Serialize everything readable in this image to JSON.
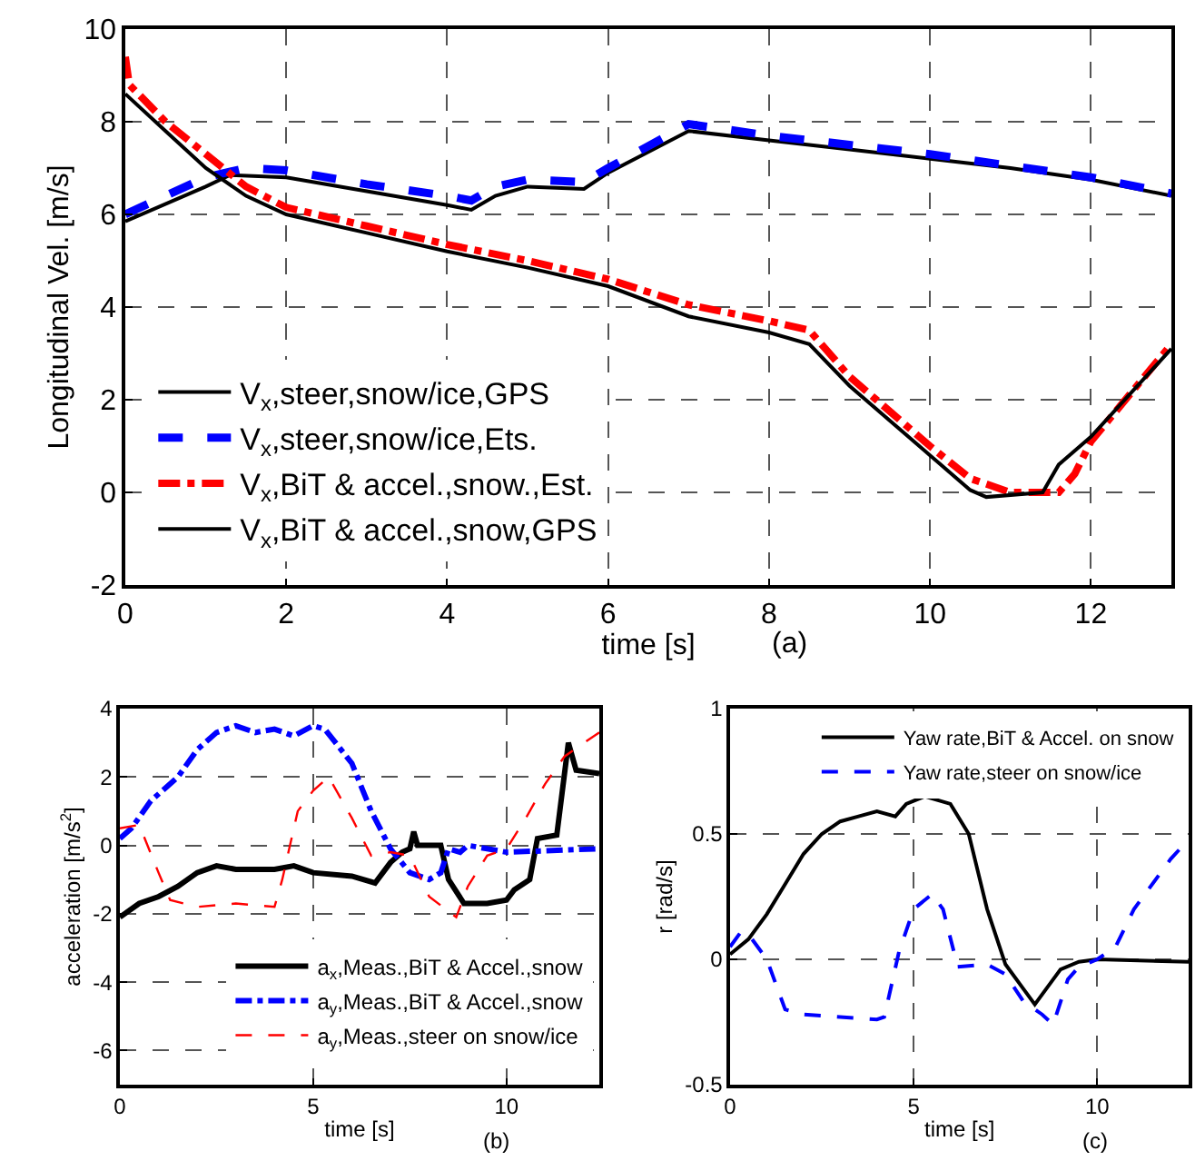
{
  "chart_data": [
    {
      "type": "line",
      "xlabel": "time [s]",
      "ylabel": "Longitudinal Vel. [m/s]",
      "annotations": [
        "(a)"
      ],
      "xlim": [
        0,
        13
      ],
      "xticks": [
        0,
        2,
        4,
        6,
        8,
        10,
        12
      ],
      "ylim": [
        -2,
        10
      ],
      "yticks": [
        -2,
        0,
        2,
        4,
        6,
        8,
        10
      ],
      "grid": true,
      "legend": "bottom left",
      "marker": "none",
      "series": [
        {
          "name": "V$_{x}$,steer,snow/ice,GPS",
          "color": "#000000",
          "line_style": "solid",
          "x": [
            0,
            1,
            1.3,
            2,
            3,
            4,
            4.3,
            4.6,
            5,
            5.7,
            6,
            7,
            8,
            9,
            10,
            11,
            12,
            13
          ],
          "values": [
            5.85,
            6.6,
            6.85,
            6.8,
            6.5,
            6.2,
            6.1,
            6.4,
            6.6,
            6.55,
            6.9,
            7.8,
            7.6,
            7.4,
            7.2,
            7.0,
            6.75,
            6.4
          ]
        },
        {
          "name": "V$_{x}$,steer,snow/ice,Ets.",
          "color": "#0000ff",
          "line_style": "dashed",
          "x": [
            0,
            0.5,
            1,
            1.5,
            2,
            3,
            4,
            4.3,
            4.6,
            5,
            5.7,
            6,
            7,
            8,
            9,
            10,
            11,
            12,
            13
          ],
          "values": [
            6.0,
            6.4,
            6.8,
            7.0,
            6.95,
            6.65,
            6.4,
            6.3,
            6.6,
            6.75,
            6.7,
            7.0,
            7.95,
            7.7,
            7.5,
            7.3,
            7.05,
            6.8,
            6.45
          ]
        },
        {
          "name": "V$_{x}$,BiT & accel.,snow.,Est.",
          "color": "#ff0000",
          "line_style": "dashdot",
          "x": [
            0,
            0.05,
            0.5,
            1,
            1.5,
            2,
            3,
            4,
            5,
            6,
            7,
            8,
            8.5,
            9,
            10,
            10.5,
            11,
            11.6,
            11.8,
            12,
            13
          ],
          "values": [
            9.4,
            8.8,
            8.0,
            7.3,
            6.6,
            6.15,
            5.75,
            5.35,
            5.0,
            4.6,
            4.05,
            3.7,
            3.5,
            2.5,
            1.0,
            0.3,
            0,
            0,
            0.4,
            1.1,
            3.2
          ]
        },
        {
          "name": "V$_{x}$,BiT & accel.,snow,GPS",
          "color": "#000000",
          "line_style": "solid",
          "x": [
            0,
            0.5,
            1,
            1.5,
            2,
            3,
            4,
            5,
            6,
            7,
            8,
            8.5,
            9,
            10,
            10.5,
            10.7,
            11.4,
            11.6,
            12,
            13
          ],
          "values": [
            8.6,
            7.8,
            7.0,
            6.4,
            6.0,
            5.6,
            5.2,
            4.85,
            4.45,
            3.8,
            3.45,
            3.2,
            2.3,
            0.8,
            0.05,
            -0.1,
            0,
            0.6,
            1.2,
            3.1
          ]
        }
      ]
    },
    {
      "type": "line",
      "xlabel": "time [s]",
      "ylabel": "acceleration [m/s$^{2}$]",
      "annotations": [
        "(b)"
      ],
      "xlim": [
        0,
        12.4
      ],
      "xticks": [
        0,
        5,
        10
      ],
      "ylim": [
        -7,
        4
      ],
      "yticks": [
        -6,
        -4,
        -2,
        0,
        2,
        4
      ],
      "grid": true,
      "legend": "bottom right",
      "marker": "none",
      "series": [
        {
          "name": "a$_{x}$,Meas.,BiT & Accel.,snow",
          "color": "#000000",
          "line_style": "solid",
          "x": [
            0,
            0.5,
            1,
            1.5,
            2,
            2.5,
            3,
            4,
            4.5,
            5,
            6,
            6.6,
            7,
            7.3,
            7.5,
            7.6,
            7.7,
            8.3,
            8.5,
            8.9,
            9.5,
            10,
            10.2,
            10.6,
            10.8,
            11.3,
            11.6,
            11.8,
            12.4
          ],
          "values": [
            -2.1,
            -1.7,
            -1.5,
            -1.2,
            -0.8,
            -0.6,
            -0.7,
            -0.7,
            -0.6,
            -0.8,
            -0.9,
            -1.1,
            -0.5,
            -0.2,
            -0.1,
            0.4,
            0,
            0,
            -1,
            -1.7,
            -1.7,
            -1.6,
            -1.3,
            -1,
            0.2,
            0.3,
            3.0,
            2.2,
            2.1
          ]
        },
        {
          "name": "a$_{y}$,Meas.,BiT & Accel.,snow",
          "color": "#0000ff",
          "line_style": "dashdot",
          "x": [
            0,
            0.3,
            0.8,
            1.5,
            2,
            2.5,
            3,
            3.5,
            4,
            4.5,
            5,
            5.3,
            6,
            6.5,
            7,
            7.5,
            8,
            8.3,
            8.5,
            8.8,
            9,
            9.5,
            10,
            12.4
          ],
          "values": [
            0.2,
            0.5,
            1.3,
            2.0,
            2.8,
            3.3,
            3.5,
            3.3,
            3.4,
            3.2,
            3.5,
            3.4,
            2.4,
            1.0,
            -0.1,
            -0.8,
            -1.0,
            -0.8,
            -0.1,
            -0.2,
            0,
            -0.1,
            -0.2,
            -0.1
          ]
        },
        {
          "name": "a$_{y}$,Meas.,steer on snow/ice",
          "color": "#ff0000",
          "line_style": "dashed",
          "x": [
            0,
            0.5,
            1,
            1.3,
            2,
            3,
            4,
            4.2,
            4.6,
            5,
            5.4,
            6,
            6.5,
            7,
            7.5,
            8,
            8.7,
            9,
            9.5,
            10,
            10.5,
            11,
            11.5,
            12,
            12.4
          ],
          "values": [
            0.5,
            0.6,
            -0.8,
            -1.6,
            -1.8,
            -1.7,
            -1.8,
            -1.0,
            1.0,
            1.6,
            2.0,
            0.8,
            -0.3,
            -0.2,
            -0.3,
            -1.5,
            -2.1,
            -1.2,
            -0.3,
            -0.1,
            0.8,
            1.8,
            2.6,
            3.0,
            3.3
          ]
        }
      ]
    },
    {
      "type": "line",
      "xlabel": "time [s]",
      "ylabel": "r [rad/s]",
      "annotations": [
        "(c)"
      ],
      "xlim": [
        0,
        12.5
      ],
      "xticks": [
        0,
        5,
        10
      ],
      "ylim": [
        -0.5,
        1
      ],
      "yticks": [
        -0.5,
        0,
        0.5,
        1
      ],
      "grid": true,
      "legend": "top right",
      "marker": "none",
      "series": [
        {
          "name": "Yaw rate,BiT & Accel. on snow",
          "color": "#000000",
          "line_style": "solid",
          "x": [
            0,
            0.5,
            1,
            1.5,
            2,
            2.5,
            3,
            3.5,
            4,
            4.5,
            4.8,
            5.3,
            6,
            6.5,
            7,
            7.5,
            8,
            8.3,
            8.6,
            9,
            9.5,
            10,
            12.5
          ],
          "values": [
            0.02,
            0.08,
            0.18,
            0.3,
            0.42,
            0.5,
            0.55,
            0.57,
            0.59,
            0.57,
            0.62,
            0.65,
            0.62,
            0.5,
            0.2,
            -0.02,
            -0.12,
            -0.18,
            -0.12,
            -0.04,
            -0.01,
            0,
            -0.01
          ]
        },
        {
          "name": "Yaw rate,steer on snow/ice",
          "color": "#0000ff",
          "line_style": "dashed",
          "x": [
            0,
            0.3,
            0.5,
            1,
            1.5,
            2,
            3,
            4,
            4.2,
            4.6,
            5,
            5.5,
            5.8,
            6.2,
            7,
            7.5,
            8,
            8.5,
            8.8,
            9.2,
            9.5,
            10,
            10.5,
            11,
            12,
            12.5
          ],
          "values": [
            0.05,
            0.11,
            0.1,
            0,
            -0.2,
            -0.22,
            -0.23,
            -0.24,
            -0.23,
            0.03,
            0.2,
            0.26,
            0.2,
            -0.03,
            -0.02,
            -0.06,
            -0.17,
            -0.22,
            -0.26,
            -0.08,
            -0.03,
            0,
            0.05,
            0.2,
            0.4,
            0.48
          ]
        }
      ]
    }
  ]
}
